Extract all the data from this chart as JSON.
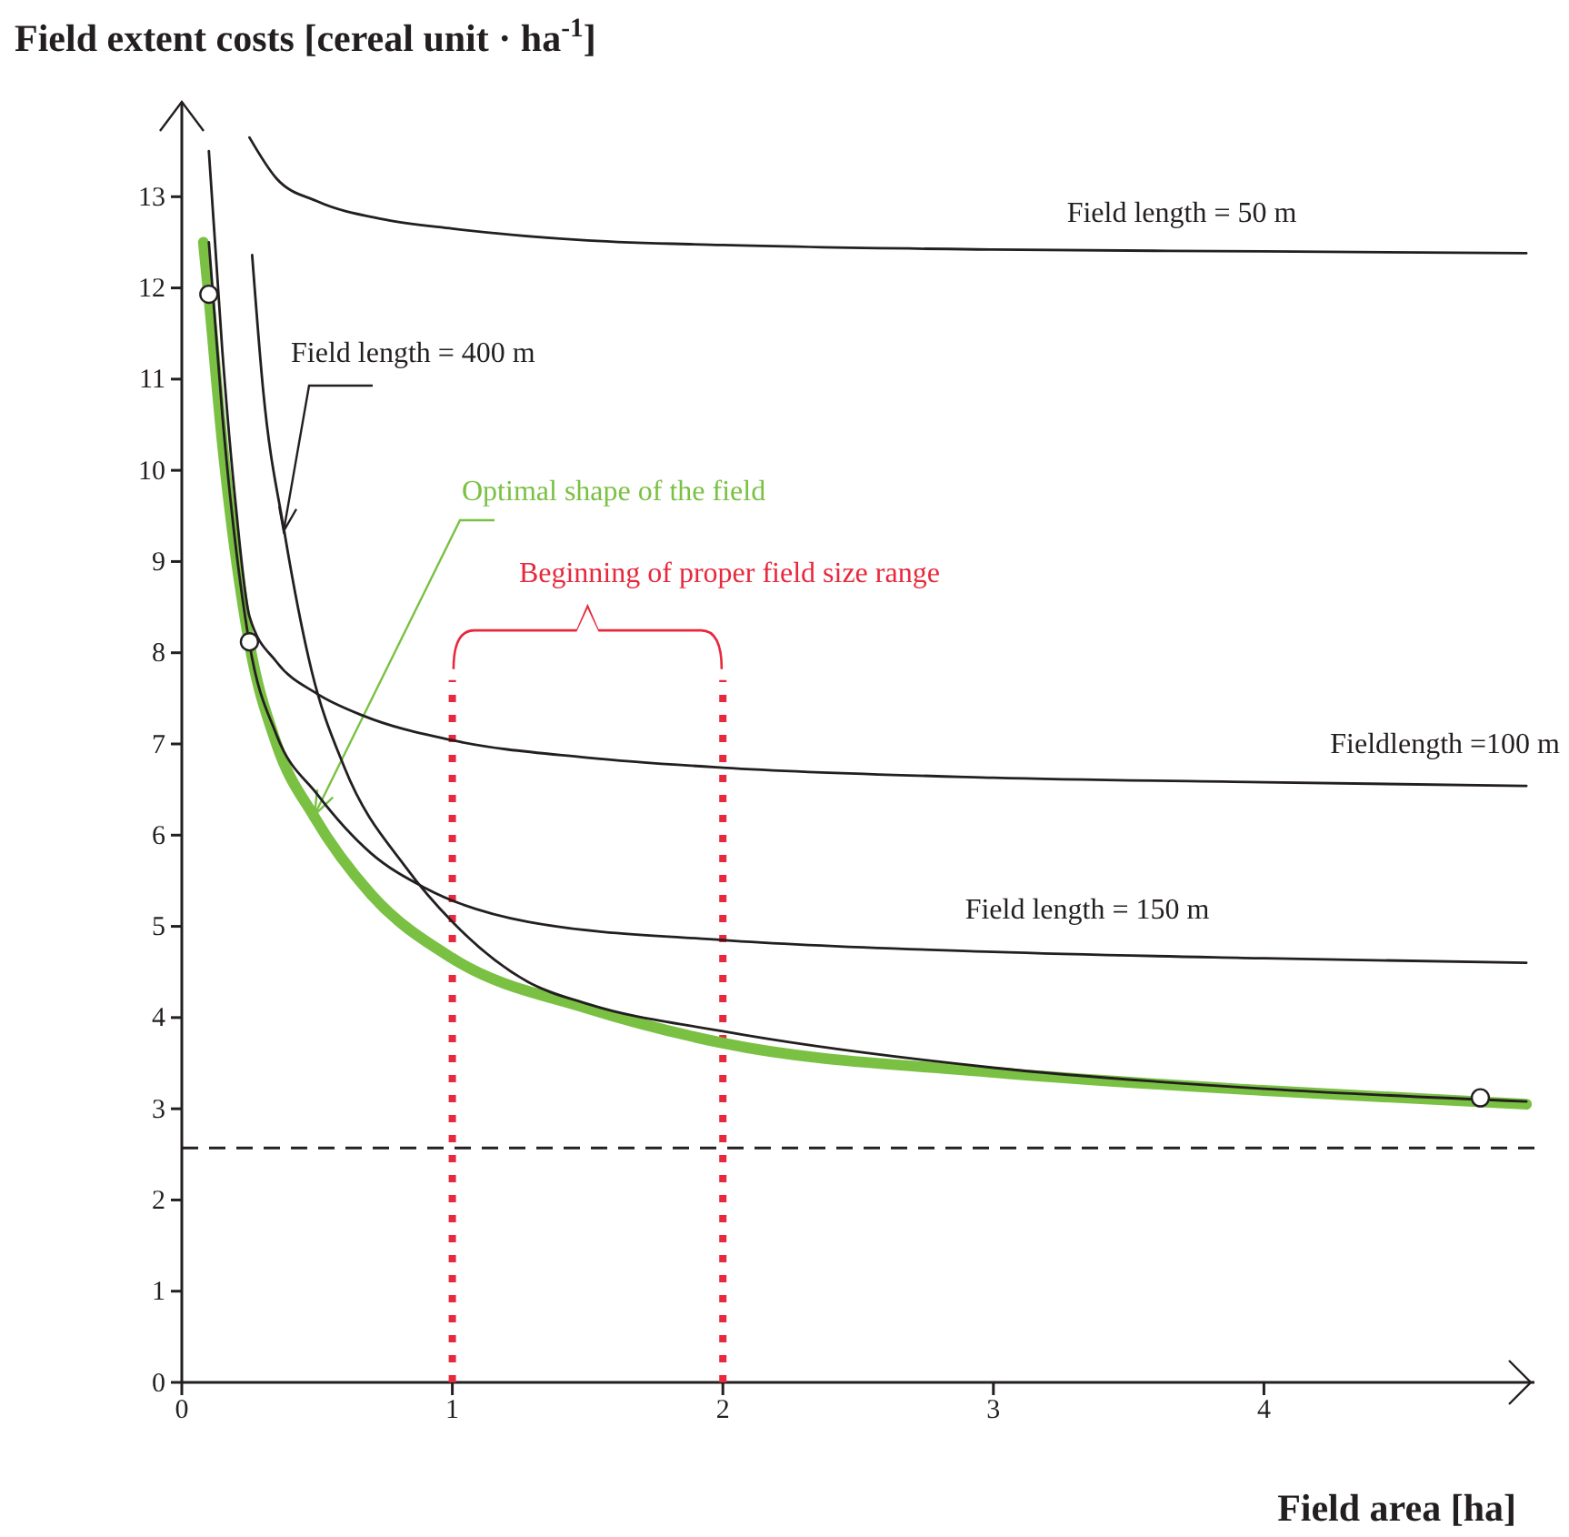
{
  "chart_data": {
    "type": "line",
    "ylabel": "Field extent costs [cereal unit · ha$^{-1}$]",
    "xlabel": "Field area [ha]",
    "xlim": [
      0,
      5
    ],
    "xticks": [
      0,
      1,
      2,
      3,
      4
    ],
    "ylim": [
      0,
      14
    ],
    "yticks": [
      0,
      1,
      2,
      3,
      4,
      5,
      6,
      7,
      8,
      9,
      10,
      11,
      12,
      13
    ],
    "grid": false,
    "line_style": "solid",
    "series": [
      {
        "name": "Field length = 50 m",
        "color": "#231f20",
        "x": [
          0.25,
          0.35,
          0.5,
          0.75,
          1,
          1.5,
          2,
          3,
          4,
          4.97
        ],
        "values": [
          13.65,
          13.2,
          12.95,
          12.75,
          12.65,
          12.52,
          12.47,
          12.42,
          12.4,
          12.38
        ]
      },
      {
        "name": "Fieldlength =100 m",
        "color": "#231f20",
        "x": [
          0.1,
          0.15,
          0.2,
          0.25,
          0.35,
          0.5,
          0.67,
          1,
          1.5,
          2,
          3,
          4,
          4.97
        ],
        "values": [
          13.5,
          11.3,
          9.6,
          8.4,
          7.9,
          7.55,
          7.31,
          7.04,
          6.85,
          6.74,
          6.63,
          6.58,
          6.54
        ]
      },
      {
        "name": "Field length = 150 m",
        "color": "#231f20",
        "x": [
          0.1,
          0.15,
          0.25,
          0.35,
          0.5,
          0.7,
          0.9,
          1.28,
          2,
          3,
          4,
          4.97
        ],
        "values": [
          12.5,
          10.6,
          8.1,
          7.1,
          6.45,
          5.8,
          5.42,
          5.05,
          4.85,
          4.72,
          4.65,
          4.6
        ]
      },
      {
        "name": "Field length = 400 m",
        "color": "#231f20",
        "x": [
          0.26,
          0.3,
          0.38,
          0.48,
          0.6,
          0.83,
          1,
          1.28,
          1.5,
          2,
          3,
          4,
          4.97
        ],
        "values": [
          12.36,
          10.9,
          9.31,
          7.8,
          6.75,
          5.64,
          5.05,
          4.39,
          4.15,
          3.85,
          3.45,
          3.22,
          3.08
        ]
      },
      {
        "name": "Optimal shape of the field",
        "color": "#7ac143",
        "x": [
          0.08,
          0.1,
          0.15,
          0.25,
          0.35,
          0.49,
          0.7,
          1,
          1.5,
          2,
          3,
          4,
          4.97
        ],
        "values": [
          12.5,
          11.9,
          10.3,
          8.1,
          7.0,
          6.2,
          5.35,
          4.65,
          4.1,
          3.72,
          3.4,
          3.2,
          3.05
        ]
      },
      {
        "type": "scatter",
        "color": "#ffffff",
        "marker": "circle",
        "x": [
          0.1,
          0.25,
          4.8
        ],
        "values": [
          11.93,
          8.12,
          3.12
        ]
      }
    ],
    "ref_lines": [
      {
        "axis": "y",
        "value": 2.57,
        "color": "#231f20",
        "line_style": "dashed"
      },
      {
        "axis": "x",
        "value": 1,
        "color": "#e8283c",
        "line_style": "dotted"
      },
      {
        "axis": "x",
        "value": 2,
        "color": "#e8283c",
        "line_style": "dotted"
      }
    ],
    "annotations": [
      "Beginning of proper field size range"
    ]
  }
}
